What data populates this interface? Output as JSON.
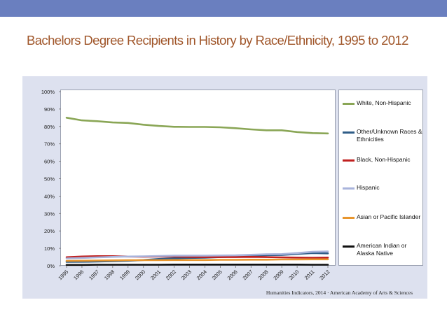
{
  "slide": {
    "title": "Bachelors Degree Recipients in History by Race/Ethnicity, 1995 to 2012",
    "source": "Humanities Indicators, 2014 · American Academy of Arts & Sciences"
  },
  "chart_data": {
    "type": "line",
    "title": "Bachelors Degree Recipients in History by Race/Ethnicity, 1995 to 2012",
    "xlabel": "",
    "ylabel": "",
    "ylim": [
      0,
      100
    ],
    "y_ticks": [
      "0%",
      "10%",
      "20%",
      "30%",
      "40%",
      "50%",
      "60%",
      "70%",
      "80%",
      "90%",
      "100%"
    ],
    "x": [
      "1995",
      "1996",
      "1997",
      "1998",
      "1999",
      "2000",
      "2001",
      "2002",
      "2003",
      "2004",
      "2005",
      "2006",
      "2007",
      "2008",
      "2009",
      "2010",
      "2011",
      "2012"
    ],
    "grid": false,
    "legend_position": "right",
    "series": [
      {
        "name": "White, Non-Hispanic",
        "color": "#8aa656",
        "values": [
          85,
          83.5,
          83,
          82.3,
          82,
          81,
          80.3,
          79.8,
          79.7,
          79.7,
          79.5,
          79,
          78.3,
          77.8,
          77.8,
          76.8,
          76.2,
          76
        ]
      },
      {
        "name": "Other/Unknown Races & Ethnicities",
        "color": "#2f5d87",
        "values": [
          2.2,
          2.3,
          2.4,
          2.6,
          2.9,
          3.3,
          3.9,
          4.3,
          4.5,
          4.6,
          5,
          5.3,
          5.7,
          6.1,
          6.2,
          6.8,
          7.3,
          7.1
        ]
      },
      {
        "name": "Black, Non-Hispanic",
        "color": "#c0201f",
        "values": [
          4.9,
          5.3,
          5.5,
          5.5,
          5.3,
          5.2,
          5.3,
          5.3,
          5.1,
          5,
          5,
          5,
          5.1,
          5,
          4.8,
          4.7,
          4.6,
          4.7
        ]
      },
      {
        "name": "Hispanic",
        "color": "#a9b4dc",
        "values": [
          4.2,
          4.5,
          4.8,
          5.1,
          5.3,
          5.4,
          5.6,
          5.8,
          5.8,
          5.8,
          5.9,
          6,
          6.3,
          6.6,
          6.7,
          7.3,
          8,
          8.2
        ]
      },
      {
        "name": "Asian or Pacific Islander",
        "color": "#e8962e",
        "values": [
          2.8,
          2.9,
          3,
          3.1,
          3.2,
          3.2,
          3.2,
          3.3,
          3.3,
          3.3,
          3.4,
          3.4,
          3.5,
          3.5,
          3.6,
          3.6,
          3.7,
          3.7
        ]
      },
      {
        "name": "American Indian or Alaska Native",
        "color": "#111111",
        "values": [
          0.5,
          0.5,
          0.6,
          0.6,
          0.6,
          0.6,
          0.6,
          0.7,
          0.7,
          0.7,
          0.7,
          0.7,
          0.7,
          0.7,
          0.7,
          0.7,
          0.6,
          0.6
        ]
      }
    ]
  }
}
